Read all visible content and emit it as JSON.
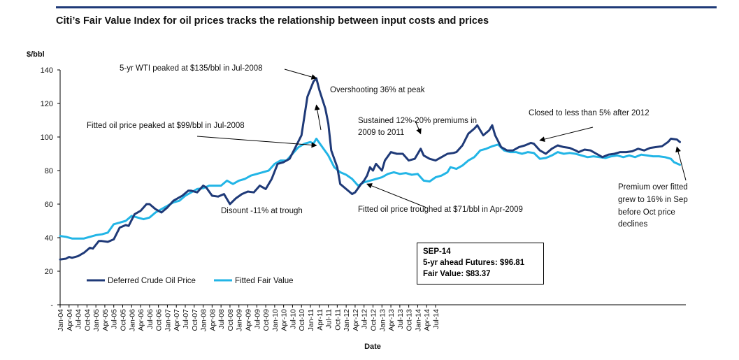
{
  "header": {
    "title": "Citi’s Fair Value Index for oil prices tracks the relationship between input costs and prices"
  },
  "info_box": {
    "line1": "SEP-14",
    "line2": "5-yr ahead Futures: $96.81",
    "line3": "Fair Value: $83.37"
  },
  "colors": {
    "deferred": "#1f3a78",
    "fitted": "#22b5e6",
    "accent": "#1f3a78"
  },
  "chart_data": {
    "type": "line",
    "title": "Citi’s Fair Value Index for oil prices tracks the relationship between input costs and prices",
    "xlabel": "Date",
    "ylabel": "$/bbl",
    "ylim": [
      0,
      140
    ],
    "yticks": [
      0,
      20,
      40,
      60,
      80,
      100,
      120,
      140
    ],
    "ytick_labels": [
      "-",
      "20",
      "40",
      "60",
      "80",
      "100",
      "120",
      "140"
    ],
    "x_start": "Jan-04",
    "x_end": "Sep-14",
    "xtick_labels": [
      "Jan-04",
      "Apr-04",
      "Jul-04",
      "Oct-04",
      "Jan-05",
      "Apr-05",
      "Jul-05",
      "Oct-05",
      "Jan-06",
      "Apr-06",
      "Jul-06",
      "Oct-06",
      "Jan-07",
      "Apr-07",
      "Jul-07",
      "Oct-07",
      "Jan-08",
      "Apr-08",
      "Jul-08",
      "Oct-08",
      "Jan-09",
      "Apr-09",
      "Jul-09",
      "Oct-09",
      "Jan-10",
      "Apr-10",
      "Jul-10",
      "Oct-10",
      "Jan-11",
      "Apr-11",
      "Jul-11",
      "Oct-11",
      "Jan-12",
      "Apr-12",
      "Jul-12",
      "Oct-12",
      "Jan-13",
      "Apr-13",
      "Jul-13",
      "Oct-13",
      "Jan-14",
      "Apr-14",
      "Jul-14"
    ],
    "legend": [
      "Deferred Crude Oil Price",
      "Fitted Fair Value"
    ],
    "legend_position": "bottom-left",
    "series": [
      {
        "name": "Deferred Crude Oil Price",
        "points": [
          [
            0,
            27
          ],
          [
            2,
            27.5
          ],
          [
            3,
            28.5
          ],
          [
            4,
            28
          ],
          [
            6,
            29
          ],
          [
            8,
            31
          ],
          [
            10,
            34
          ],
          [
            11,
            33.5
          ],
          [
            13,
            38
          ],
          [
            14,
            38
          ],
          [
            16,
            37.5
          ],
          [
            18,
            39
          ],
          [
            20,
            46
          ],
          [
            22,
            47.5
          ],
          [
            23,
            47
          ],
          [
            25,
            54
          ],
          [
            27,
            56
          ],
          [
            29,
            60
          ],
          [
            30,
            60
          ],
          [
            32,
            57
          ],
          [
            34,
            55
          ],
          [
            36,
            58
          ],
          [
            38,
            62
          ],
          [
            39,
            63
          ],
          [
            41,
            65
          ],
          [
            43,
            68
          ],
          [
            44,
            68
          ],
          [
            46,
            67
          ],
          [
            48,
            71
          ],
          [
            49,
            70
          ],
          [
            51,
            65
          ],
          [
            53,
            64.5
          ],
          [
            55,
            66
          ],
          [
            57,
            60
          ],
          [
            59,
            63.5
          ],
          [
            61,
            66
          ],
          [
            63,
            67.5
          ],
          [
            65,
            67
          ],
          [
            67,
            71
          ],
          [
            69,
            69
          ],
          [
            71,
            75
          ],
          [
            73,
            84
          ],
          [
            75,
            85
          ],
          [
            77,
            87
          ],
          [
            79,
            94
          ],
          [
            81,
            101
          ],
          [
            83,
            124
          ],
          [
            85,
            133
          ],
          [
            86,
            135
          ],
          [
            87,
            128
          ],
          [
            89,
            117
          ],
          [
            90,
            108
          ],
          [
            91,
            92
          ],
          [
            93,
            82
          ],
          [
            94,
            72
          ],
          [
            96,
            69
          ],
          [
            98,
            66
          ],
          [
            99,
            67
          ],
          [
            101,
            72
          ],
          [
            102,
            74
          ],
          [
            103,
            77
          ],
          [
            104,
            82
          ],
          [
            105,
            80
          ],
          [
            106,
            84
          ],
          [
            108,
            80
          ],
          [
            109,
            86
          ],
          [
            111,
            91
          ],
          [
            113,
            90
          ],
          [
            115,
            90
          ],
          [
            117,
            86
          ],
          [
            119,
            87
          ],
          [
            121,
            93
          ],
          [
            122,
            89
          ],
          [
            124,
            87
          ],
          [
            126,
            86
          ],
          [
            128,
            88
          ],
          [
            130,
            90
          ],
          [
            132,
            90.5
          ],
          [
            133,
            91
          ],
          [
            135,
            95
          ],
          [
            137,
            102
          ],
          [
            139,
            105
          ],
          [
            140,
            107
          ],
          [
            142,
            101
          ],
          [
            144,
            104
          ],
          [
            145,
            107
          ],
          [
            146,
            101
          ],
          [
            148,
            94
          ],
          [
            150,
            92
          ],
          [
            152,
            92
          ],
          [
            154,
            94
          ],
          [
            156,
            95
          ],
          [
            158,
            96.5
          ],
          [
            159,
            96
          ],
          [
            161,
            92
          ],
          [
            163,
            90
          ],
          [
            165,
            93
          ],
          [
            167,
            95
          ],
          [
            169,
            94
          ],
          [
            171,
            93.5
          ],
          [
            173,
            92
          ],
          [
            174,
            91
          ],
          [
            176,
            92.5
          ],
          [
            178,
            92
          ],
          [
            180,
            90
          ],
          [
            182,
            88
          ],
          [
            184,
            89.5
          ],
          [
            186,
            90
          ],
          [
            188,
            91
          ],
          [
            190,
            91
          ],
          [
            192,
            91.5
          ],
          [
            194,
            93
          ],
          [
            196,
            92
          ],
          [
            198,
            93.5
          ],
          [
            200,
            94
          ],
          [
            202,
            94.5
          ],
          [
            204,
            97
          ],
          [
            205,
            99
          ],
          [
            207,
            98.5
          ],
          [
            208,
            97
          ]
        ]
      },
      {
        "name": "Fitted Fair Value",
        "points": [
          [
            0,
            41
          ],
          [
            2,
            40.5
          ],
          [
            4,
            39.5
          ],
          [
            6,
            39.5
          ],
          [
            8,
            39.5
          ],
          [
            10,
            40.5
          ],
          [
            12,
            41.5
          ],
          [
            14,
            42
          ],
          [
            16,
            43
          ],
          [
            18,
            48
          ],
          [
            20,
            49
          ],
          [
            22,
            50
          ],
          [
            24,
            53
          ],
          [
            26,
            52
          ],
          [
            28,
            51
          ],
          [
            30,
            52
          ],
          [
            32,
            55
          ],
          [
            34,
            57
          ],
          [
            36,
            59
          ],
          [
            38,
            61
          ],
          [
            40,
            62
          ],
          [
            42,
            65
          ],
          [
            44,
            67
          ],
          [
            46,
            69
          ],
          [
            48,
            69.5
          ],
          [
            50,
            71
          ],
          [
            52,
            71
          ],
          [
            54,
            71
          ],
          [
            56,
            74
          ],
          [
            58,
            72
          ],
          [
            60,
            74
          ],
          [
            62,
            75
          ],
          [
            64,
            77
          ],
          [
            66,
            78
          ],
          [
            68,
            79
          ],
          [
            70,
            80
          ],
          [
            72,
            84
          ],
          [
            74,
            86
          ],
          [
            76,
            86
          ],
          [
            78,
            90
          ],
          [
            80,
            94
          ],
          [
            82,
            96
          ],
          [
            84,
            97
          ],
          [
            85,
            96
          ],
          [
            86,
            99
          ],
          [
            88,
            94
          ],
          [
            90,
            89
          ],
          [
            92,
            82
          ],
          [
            94,
            79
          ],
          [
            96,
            77.5
          ],
          [
            98,
            75
          ],
          [
            100,
            71
          ],
          [
            102,
            73
          ],
          [
            104,
            74
          ],
          [
            106,
            75
          ],
          [
            108,
            76
          ],
          [
            110,
            78
          ],
          [
            112,
            79
          ],
          [
            114,
            78
          ],
          [
            116,
            78.5
          ],
          [
            118,
            77.5
          ],
          [
            120,
            78
          ],
          [
            122,
            74
          ],
          [
            124,
            73.5
          ],
          [
            126,
            76
          ],
          [
            128,
            77
          ],
          [
            130,
            79
          ],
          [
            131,
            82
          ],
          [
            133,
            81
          ],
          [
            135,
            83
          ],
          [
            137,
            86
          ],
          [
            139,
            88
          ],
          [
            141,
            92
          ],
          [
            143,
            93
          ],
          [
            145,
            94.5
          ],
          [
            147,
            95.5
          ],
          [
            149,
            92
          ],
          [
            151,
            91
          ],
          [
            153,
            91
          ],
          [
            155,
            90
          ],
          [
            157,
            91
          ],
          [
            159,
            90.5
          ],
          [
            161,
            87
          ],
          [
            163,
            87.5
          ],
          [
            165,
            89
          ],
          [
            167,
            91
          ],
          [
            169,
            90
          ],
          [
            171,
            90.5
          ],
          [
            173,
            90
          ],
          [
            175,
            89
          ],
          [
            177,
            88
          ],
          [
            179,
            88.5
          ],
          [
            181,
            88
          ],
          [
            183,
            87.5
          ],
          [
            185,
            88.5
          ],
          [
            187,
            89
          ],
          [
            189,
            88
          ],
          [
            191,
            89
          ],
          [
            193,
            88
          ],
          [
            195,
            89.5
          ],
          [
            197,
            89
          ],
          [
            199,
            88.5
          ],
          [
            201,
            88.5
          ],
          [
            203,
            88
          ],
          [
            205,
            87
          ],
          [
            206,
            85
          ],
          [
            208,
            83.4
          ]
        ]
      }
    ],
    "annotations": [
      {
        "text": "5-yr WTI peaked at $135/bbl in Jul-2008",
        "points_to": [
          86,
          135
        ]
      },
      {
        "text": "Overshooting 36% at peak",
        "points_to": [
          86,
          119
        ]
      },
      {
        "text": "Fitted oil price peaked at $99/bbl in Jul-2008",
        "points_to": [
          86,
          95
        ]
      },
      {
        "text": "Disount -11% at trough",
        "points_to": [
          0,
          0
        ]
      },
      {
        "text": "Sustained 12%-20% premiums in",
        "points_to": [
          0,
          0
        ]
      },
      {
        "text": "2009 to 2011",
        "points_to": [
          121,
          102
        ]
      },
      {
        "text": "Fitted oil price troughed at $71/bbl in Apr-2009",
        "points_to": [
          103,
          72
        ]
      },
      {
        "text": "Closed to less than 5% after 2012",
        "points_to": [
          161,
          98
        ]
      },
      {
        "text": "Premium over fitted",
        "points_to": [
          0,
          0
        ]
      },
      {
        "text": "grew to 16% in Sep",
        "points_to": [
          0,
          0
        ]
      },
      {
        "text": "before Oct price",
        "points_to": [
          0,
          0
        ]
      },
      {
        "text": "declines",
        "points_to": [
          207,
          94
        ]
      }
    ]
  }
}
